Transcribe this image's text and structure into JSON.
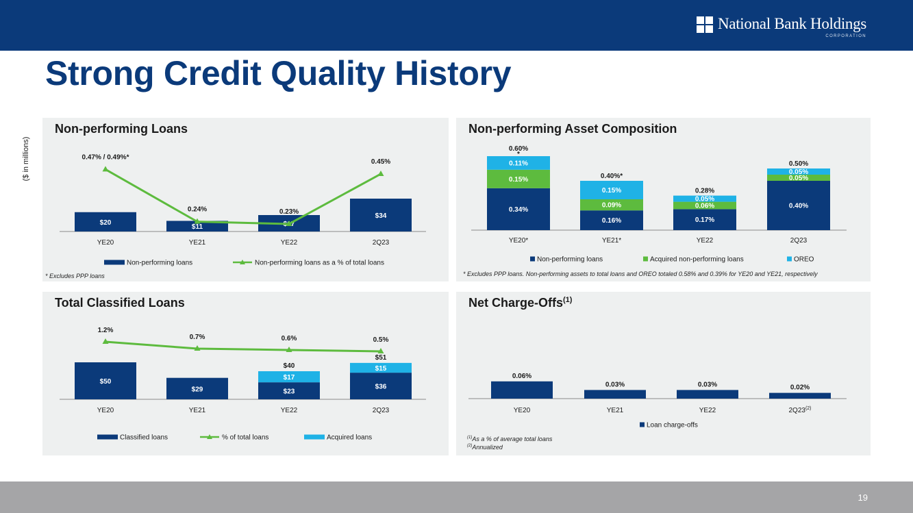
{
  "header": {
    "logo_name": "National Bank Holdings",
    "logo_sub": "CORPORATION",
    "title": "Strong Credit Quality History"
  },
  "unit_label": "($ in millions)",
  "footer": {
    "page_number": "19"
  },
  "colors": {
    "navy": "#0b3a7a",
    "green": "#5dbb3e",
    "light_blue": "#1fb2e6",
    "panel_bg": "#eef0f0"
  },
  "notes": {
    "npl": "* Excludes PPP loans",
    "npa": "* Excludes PPP loans. Non-performing assets to total loans and OREO totaled 0.58% and 0.39% for YE20 and YE21, respectively",
    "nco_1": "As a % of average total loans",
    "nco_2": "Annualized",
    "nco_1_marker": "(1)",
    "nco_2_marker": "(2)"
  },
  "chart_data": [
    {
      "id": "npl",
      "type": "bar",
      "title": "Non-performing Loans",
      "categories": [
        "YE20",
        "YE21",
        "YE22",
        "2Q23"
      ],
      "series": [
        {
          "name": "Non-performing loans",
          "kind": "bar",
          "values": [
            20,
            11,
            17,
            34
          ],
          "labels": [
            "$20",
            "$11",
            "$17",
            "$34"
          ]
        },
        {
          "name": "Non-performing loans as a % of total loans",
          "kind": "line",
          "values": [
            0.47,
            0.24,
            0.23,
            0.45
          ],
          "labels": [
            "0.47% / 0.49%*",
            "0.24%",
            "0.23%",
            "0.45%"
          ]
        }
      ],
      "legend": [
        "Non-performing loans",
        "Non-performing loans as a % of total loans"
      ]
    },
    {
      "id": "npa",
      "type": "bar",
      "stacked": true,
      "title": "Non-performing Asset Composition",
      "categories": [
        "YE20*",
        "YE21*",
        "YE22",
        "2Q23"
      ],
      "series": [
        {
          "name": "Non-performing loans",
          "values": [
            0.34,
            0.16,
            0.17,
            0.4
          ],
          "labels": [
            "0.34%",
            "0.16%",
            "0.17%",
            "0.40%"
          ]
        },
        {
          "name": "Acquired non-performing loans",
          "values": [
            0.15,
            0.09,
            0.06,
            0.05
          ],
          "labels": [
            "0.15%",
            "0.09%",
            "0.06%",
            "0.05%"
          ]
        },
        {
          "name": "OREO",
          "values": [
            0.11,
            0.15,
            0.05,
            0.05
          ],
          "labels": [
            "0.11%",
            "0.15%",
            "0.05%",
            "0.05%"
          ]
        }
      ],
      "totals": [
        "0.60%\n*",
        "0.40%*",
        "0.28%",
        "0.50%"
      ],
      "legend": [
        "Non-performing loans",
        "Acquired non-performing loans",
        "OREO"
      ]
    },
    {
      "id": "tcl",
      "type": "bar",
      "stacked": true,
      "title": "Total Classified Loans",
      "categories": [
        "YE20",
        "YE21",
        "YE22",
        "2Q23"
      ],
      "series": [
        {
          "name": "Classified loans",
          "kind": "bar",
          "values": [
            50,
            29,
            23,
            36
          ],
          "labels": [
            "$50",
            "$29",
            "$23",
            "$36"
          ]
        },
        {
          "name": "Acquired loans",
          "kind": "bar",
          "values": [
            0,
            0,
            17,
            15
          ],
          "labels": [
            "",
            "",
            "$17",
            "$15"
          ]
        },
        {
          "name": "% of total loans",
          "kind": "line",
          "values": [
            1.2,
            0.7,
            0.6,
            0.5
          ],
          "labels": [
            "1.2%",
            "0.7%",
            "0.6%",
            "0.5%"
          ]
        }
      ],
      "totals": [
        "",
        "",
        "$40",
        "$51"
      ],
      "legend": [
        "Classified loans",
        "% of total loans",
        "Acquired loans"
      ]
    },
    {
      "id": "nco",
      "type": "bar",
      "title": "Net Charge-Offs",
      "title_sup": "(1)",
      "categories": [
        "YE20",
        "YE21",
        "YE22",
        "2Q23"
      ],
      "category_sup": [
        "",
        "",
        "",
        "(2)"
      ],
      "series": [
        {
          "name": "Loan charge-offs",
          "values": [
            0.06,
            0.03,
            0.03,
            0.02
          ],
          "labels": [
            "0.06%",
            "0.03%",
            "0.03%",
            "0.02%"
          ]
        }
      ],
      "legend": [
        "Loan charge-offs"
      ]
    }
  ]
}
